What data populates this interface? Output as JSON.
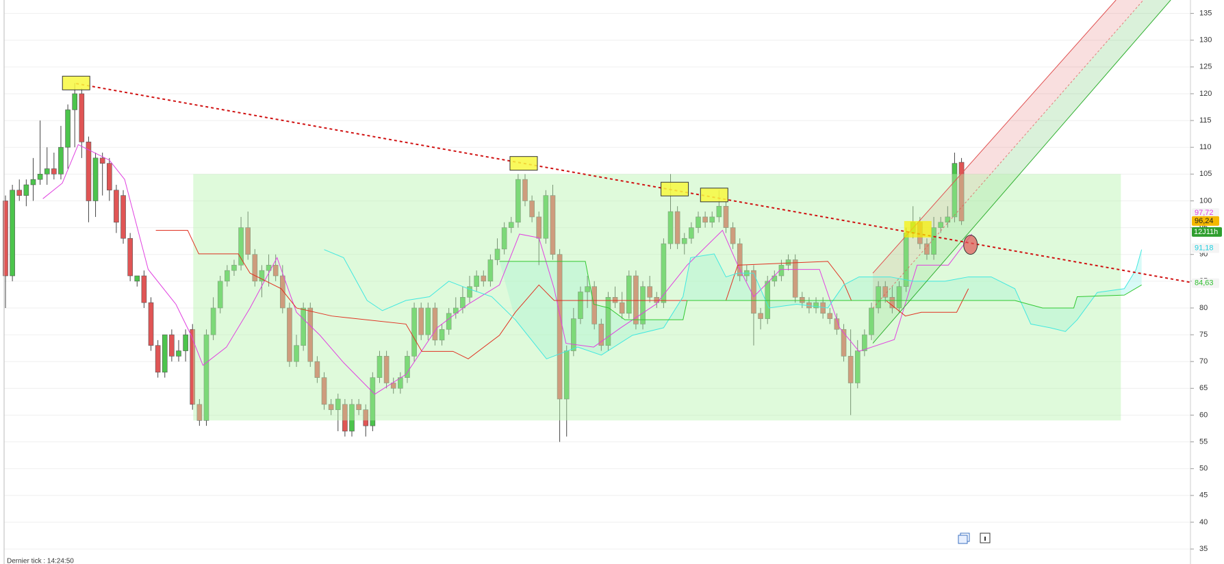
{
  "chart_data": {
    "type": "candlestick",
    "up_color": "#4cc44c",
    "down_color": "#e05555",
    "ylim": [
      32.2,
      137.5
    ],
    "yticks": [
      35,
      40,
      45,
      50,
      55,
      60,
      65,
      70,
      75,
      80,
      85,
      90,
      95,
      100,
      105,
      110,
      115,
      120,
      125,
      130,
      135
    ],
    "grid": true,
    "candles": [
      [
        100,
        101,
        80,
        86
      ],
      [
        86,
        103,
        85,
        102
      ],
      [
        102,
        104,
        100,
        101
      ],
      [
        101,
        104,
        99,
        103
      ],
      [
        103,
        108,
        100,
        104
      ],
      [
        104,
        115,
        103,
        105
      ],
      [
        105,
        110,
        103,
        106
      ],
      [
        106,
        109,
        104,
        105
      ],
      [
        105,
        114,
        104,
        110
      ],
      [
        110,
        118,
        106,
        117
      ],
      [
        117,
        122,
        110,
        120
      ],
      [
        120,
        121,
        108,
        111
      ],
      [
        111,
        112,
        96,
        100
      ],
      [
        100,
        109,
        97,
        108
      ],
      [
        108,
        109,
        101,
        107
      ],
      [
        107,
        108,
        100,
        102
      ],
      [
        102,
        103,
        94,
        96
      ],
      [
        101,
        102,
        92,
        93
      ],
      [
        93,
        94,
        85,
        86
      ],
      [
        85,
        86,
        84,
        86
      ],
      [
        86,
        87,
        80,
        81
      ],
      [
        81,
        82,
        72,
        73
      ],
      [
        73,
        74,
        67,
        68
      ],
      [
        68,
        75,
        67,
        75
      ],
      [
        75,
        76,
        70,
        71
      ],
      [
        71,
        74,
        70,
        72
      ],
      [
        72,
        76,
        70,
        75
      ],
      [
        76,
        77,
        61,
        62
      ],
      [
        62,
        63,
        58,
        59
      ],
      [
        59,
        76,
        58,
        75
      ],
      [
        75,
        82,
        74,
        80
      ],
      [
        80,
        86,
        79,
        85
      ],
      [
        85,
        88,
        84,
        87
      ],
      [
        87,
        89,
        86,
        88
      ],
      [
        88,
        97,
        87,
        95
      ],
      [
        95,
        98,
        89,
        90
      ],
      [
        90,
        91,
        84,
        85
      ],
      [
        85,
        88,
        82,
        87
      ],
      [
        87,
        90,
        84,
        88
      ],
      [
        88,
        90,
        85,
        86
      ],
      [
        86,
        88,
        79,
        80
      ],
      [
        80,
        81,
        69,
        70
      ],
      [
        70,
        75,
        69,
        73
      ],
      [
        73,
        81,
        72,
        80
      ],
      [
        80,
        81,
        69,
        70
      ],
      [
        70,
        71,
        66,
        67
      ],
      [
        67,
        68,
        61,
        62
      ],
      [
        62,
        63,
        60,
        61
      ],
      [
        61,
        64,
        57,
        63
      ],
      [
        62,
        63,
        56,
        57
      ],
      [
        57,
        63,
        56,
        62
      ],
      [
        62,
        63,
        60,
        61
      ],
      [
        61,
        62,
        56,
        58
      ],
      [
        58,
        68,
        57,
        67
      ],
      [
        67,
        72,
        66,
        71
      ],
      [
        71,
        72,
        65,
        66
      ],
      [
        66,
        67,
        64,
        65
      ],
      [
        65,
        68,
        64,
        67
      ],
      [
        67,
        72,
        66,
        71
      ],
      [
        71,
        81,
        70,
        80
      ],
      [
        80,
        81,
        74,
        75
      ],
      [
        75,
        81,
        74,
        80
      ],
      [
        80,
        81,
        73,
        74
      ],
      [
        74,
        77,
        73,
        76
      ],
      [
        76,
        80,
        75,
        79
      ],
      [
        79,
        82,
        78,
        80
      ],
      [
        80,
        84,
        79,
        82
      ],
      [
        82,
        86,
        81,
        84
      ],
      [
        84,
        87,
        83,
        86
      ],
      [
        86,
        87,
        84,
        85
      ],
      [
        85,
        90,
        84,
        89
      ],
      [
        89,
        93,
        88,
        91
      ],
      [
        91,
        96,
        90,
        95
      ],
      [
        95,
        97,
        94,
        96
      ],
      [
        96,
        105,
        95,
        104
      ],
      [
        104,
        105,
        99,
        100
      ],
      [
        100,
        101,
        96,
        97
      ],
      [
        97,
        98,
        88,
        93
      ],
      [
        93,
        102,
        92,
        101
      ],
      [
        101,
        103,
        89,
        90
      ],
      [
        90,
        91,
        55,
        63
      ],
      [
        63,
        73,
        56,
        72
      ],
      [
        72,
        80,
        71,
        78
      ],
      [
        78,
        84,
        77,
        83
      ],
      [
        83,
        86,
        80,
        84
      ],
      [
        84,
        85,
        76,
        77
      ],
      [
        77,
        78,
        72,
        73
      ],
      [
        73,
        83,
        72,
        82
      ],
      [
        82,
        84,
        80,
        81
      ],
      [
        81,
        83,
        78,
        79
      ],
      [
        79,
        87,
        78,
        86
      ],
      [
        86,
        87,
        76,
        77
      ],
      [
        77,
        85,
        76,
        84
      ],
      [
        84,
        86,
        81,
        82
      ],
      [
        82,
        83,
        80,
        81
      ],
      [
        81,
        93,
        80,
        92
      ],
      [
        92,
        105,
        91,
        98
      ],
      [
        98,
        99,
        91,
        92
      ],
      [
        92,
        94,
        90,
        93
      ],
      [
        93,
        96,
        92,
        95
      ],
      [
        95,
        98,
        94,
        97
      ],
      [
        97,
        98,
        95,
        96
      ],
      [
        96,
        98,
        95,
        97
      ],
      [
        97,
        102,
        96,
        99
      ],
      [
        99,
        100,
        94,
        95
      ],
      [
        95,
        96,
        91,
        92
      ],
      [
        92,
        93,
        85,
        86
      ],
      [
        86,
        88,
        85,
        87
      ],
      [
        87,
        88,
        73,
        79
      ],
      [
        79,
        80,
        76,
        78
      ],
      [
        78,
        86,
        77,
        85
      ],
      [
        85,
        87,
        84,
        86
      ],
      [
        86,
        89,
        85,
        88
      ],
      [
        88,
        90,
        87,
        89
      ],
      [
        89,
        90,
        81,
        82
      ],
      [
        82,
        83,
        80,
        81
      ],
      [
        81,
        82,
        79,
        80
      ],
      [
        80,
        82,
        79,
        81
      ],
      [
        81,
        82,
        78,
        79
      ],
      [
        79,
        80,
        77,
        78
      ],
      [
        78,
        79,
        75,
        76
      ],
      [
        76,
        77,
        70,
        71
      ],
      [
        71,
        76,
        60,
        66
      ],
      [
        66,
        74,
        65,
        72
      ],
      [
        72,
        76,
        71,
        75
      ],
      [
        75,
        81,
        74,
        80
      ],
      [
        80,
        85,
        79,
        84
      ],
      [
        84,
        85,
        81,
        82
      ],
      [
        82,
        84,
        79,
        80
      ],
      [
        80,
        85,
        79,
        84
      ],
      [
        84,
        95,
        83,
        94
      ],
      [
        94,
        99,
        93,
        96
      ],
      [
        96,
        97,
        91,
        92
      ],
      [
        92,
        93,
        89,
        90
      ],
      [
        90,
        97,
        89,
        95
      ],
      [
        95,
        97,
        94,
        96
      ],
      [
        96,
        99,
        95,
        97
      ],
      [
        97,
        109,
        96,
        107
      ],
      [
        107.2,
        108,
        95.5,
        96.24
      ]
    ],
    "lines": [
      {
        "color": "#e040e0",
        "points": [
          [
            5.4,
            100.4
          ],
          [
            8.2,
            103.3
          ],
          [
            10.5,
            110.5
          ],
          [
            15.0,
            107.6
          ],
          [
            17.2,
            104.0
          ],
          [
            20.6,
            87.2
          ],
          [
            24.6,
            80.7
          ],
          [
            26.8,
            74.9
          ],
          [
            28.5,
            69.3
          ],
          [
            31.9,
            72.7
          ],
          [
            35.3,
            80.0
          ],
          [
            39.2,
            89.4
          ],
          [
            42.0,
            79.2
          ],
          [
            45.4,
            74.9
          ],
          [
            48.8,
            69.8
          ],
          [
            53.3,
            63.9
          ],
          [
            57.8,
            67.6
          ],
          [
            62.3,
            76.3
          ],
          [
            66.8,
            80.7
          ],
          [
            71.3,
            84.3
          ],
          [
            74.2,
            93.8
          ],
          [
            77.0,
            93.1
          ],
          [
            79.2,
            83.6
          ],
          [
            80.9,
            73.4
          ],
          [
            84.9,
            72.7
          ],
          [
            88.8,
            76.3
          ],
          [
            93.9,
            80.7
          ],
          [
            98.4,
            88.0
          ],
          [
            103.5,
            94.5
          ],
          [
            105.7,
            88.0
          ],
          [
            108.0,
            82.1
          ],
          [
            111.9,
            87.2
          ],
          [
            117.5,
            87.2
          ],
          [
            120.4,
            76.3
          ],
          [
            123.2,
            71.9
          ],
          [
            128.3,
            74.1
          ],
          [
            131.6,
            88.0
          ],
          [
            136.1,
            88.0
          ],
          [
            139.5,
            93.8
          ]
        ]
      },
      {
        "color": "#e03020",
        "points": [
          [
            21.7,
            94.5
          ],
          [
            26.3,
            94.5
          ],
          [
            27.9,
            90.1
          ],
          [
            33.6,
            90.1
          ],
          [
            35.3,
            86.5
          ],
          [
            39.8,
            83.6
          ],
          [
            42.0,
            80.0
          ],
          [
            47.1,
            78.5
          ],
          [
            57.8,
            77.0
          ],
          [
            60.1,
            71.9
          ],
          [
            64.6,
            71.9
          ],
          [
            66.8,
            70.5
          ],
          [
            71.3,
            74.9
          ],
          [
            73.6,
            79.2
          ],
          [
            77.0,
            84.3
          ],
          [
            79.2,
            81.4
          ],
          [
            104.0,
            81.4
          ],
          [
            105.7,
            88.0
          ],
          [
            118.7,
            88.7
          ],
          [
            120.9,
            85.0
          ],
          [
            122.1,
            81.4
          ],
          [
            127.1,
            81.4
          ],
          [
            129.9,
            78.5
          ],
          [
            132.2,
            79.2
          ],
          [
            137.3,
            79.2
          ],
          [
            139.0,
            83.6
          ]
        ]
      },
      {
        "color": "#40e8e0",
        "points": [
          [
            46.0,
            90.9
          ],
          [
            48.8,
            89.4
          ],
          [
            52.2,
            81.4
          ],
          [
            54.4,
            79.5
          ],
          [
            57.8,
            81.4
          ],
          [
            61.2,
            82.1
          ],
          [
            64.0,
            85.0
          ],
          [
            66.8,
            83.6
          ],
          [
            70.2,
            82.1
          ],
          [
            73.6,
            77.8
          ],
          [
            78.1,
            70.5
          ],
          [
            82.6,
            72.7
          ],
          [
            86.0,
            71.2
          ],
          [
            90.5,
            74.9
          ],
          [
            95.0,
            76.3
          ],
          [
            97.8,
            82.1
          ],
          [
            98.9,
            89.4
          ],
          [
            102.3,
            90.1
          ],
          [
            104.0,
            85.8
          ],
          [
            105.7,
            86.5
          ],
          [
            108.0,
            86.5
          ],
          [
            110.2,
            80.0
          ],
          [
            114.2,
            80.7
          ],
          [
            118.7,
            80.0
          ],
          [
            121.0,
            84.3
          ],
          [
            123.2,
            85.8
          ],
          [
            127.7,
            85.8
          ],
          [
            131.1,
            85.0
          ],
          [
            135.6,
            85.0
          ],
          [
            139.0,
            85.8
          ],
          [
            142.3,
            85.8
          ],
          [
            145.7,
            83.6
          ],
          [
            148.0,
            77.0
          ],
          [
            150.8,
            76.3
          ],
          [
            153.0,
            75.6
          ],
          [
            154.7,
            77.8
          ],
          [
            157.6,
            82.9
          ],
          [
            161.5,
            83.6
          ],
          [
            163.2,
            87.2
          ],
          [
            164.0,
            90.9
          ]
        ]
      },
      {
        "color": "#30c830",
        "points": [
          [
            71.3,
            88.7
          ],
          [
            83.7,
            88.7
          ],
          [
            84.9,
            80.7
          ],
          [
            87.1,
            80.0
          ],
          [
            89.4,
            77.8
          ],
          [
            97.8,
            77.8
          ],
          [
            98.4,
            81.4
          ],
          [
            145.7,
            81.4
          ],
          [
            149.7,
            80.0
          ],
          [
            154.2,
            80.0
          ],
          [
            154.7,
            82.1
          ],
          [
            161.5,
            82.4
          ],
          [
            164.0,
            84.3
          ]
        ]
      }
    ],
    "zone": {
      "x": [
        27.1,
        161
      ],
      "y": [
        59,
        105
      ],
      "color": "#b8f5b0"
    },
    "trendline": {
      "color": "#d01010",
      "points": [
        [
          10.2,
          121.9
        ],
        [
          171,
          84.8
        ]
      ]
    },
    "channel": {
      "upper": [
        [
          125.2,
          86.5
        ],
        [
          160.3,
          137.5
        ]
      ],
      "lower": [
        [
          125.2,
          73.4
        ],
        [
          168.2,
          137.5
        ]
      ],
      "upper_color": "#e05050",
      "lower_color": "#30b030"
    },
    "highs": [
      [
        10.2,
        122
      ],
      [
        74.8,
        107.0
      ],
      [
        96.6,
        102.2
      ],
      [
        102.3,
        101.1
      ]
    ],
    "highlight": [
      131.7,
      94.7
    ],
    "circle": [
      139.3,
      91.8
    ],
    "price_labels": [
      {
        "value": 97.72,
        "label": "97,72",
        "color": "#e040e0",
        "bg": "#f4f4f4"
      },
      {
        "value": 96.24,
        "label": "96,24",
        "color": "#222222",
        "bg": "#f5b800"
      },
      {
        "value": 91.18,
        "label": "91,18",
        "color": "#20d0e0",
        "bg": "#f4f4f4"
      },
      {
        "value": 84.63,
        "label": "84,63",
        "color": "#30c030",
        "bg": "#f4f4f4"
      }
    ],
    "countdown": {
      "label": "12J11h",
      "color": "#ffffff",
      "bg": "#2e9e2e"
    },
    "footer": "Dernier tick : 14:24:50"
  }
}
